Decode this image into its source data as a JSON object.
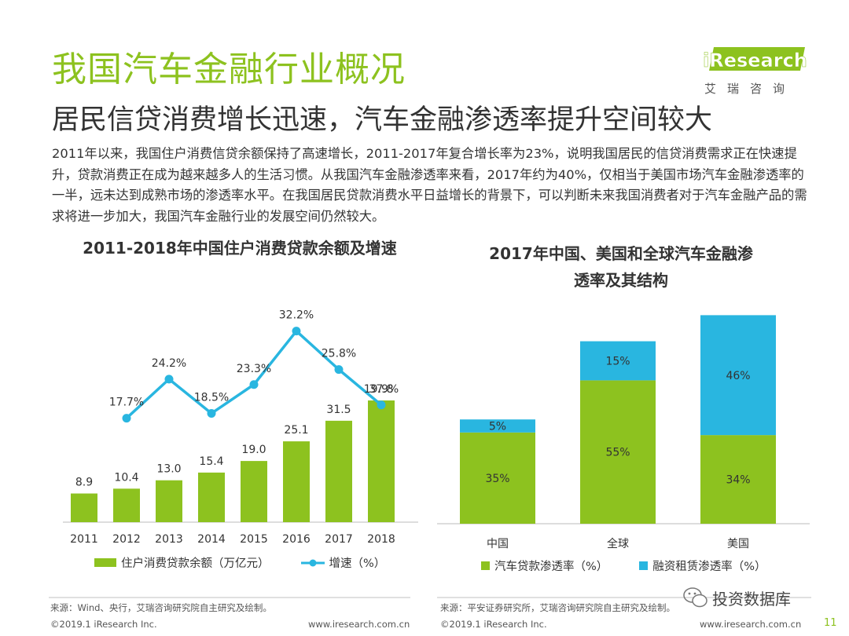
{
  "header": {
    "title": "我国汽车金融行业概况",
    "subtitle": "居民信贷消费增长迅速，汽车金融渗透率提升空间较大",
    "logo_text": "iResearch",
    "logo_cn": "艾瑞咨询",
    "brand_color": "#8dc21f"
  },
  "body": {
    "paragraph": "2011年以来，我国住户消费信贷余额保持了高速增长，2011-2017年复合增长率为23%，说明我国居民的信贷消费需求正在快速提升，贷款消费正在成为越来越多人的生活习惯。从我国汽车金融渗透率来看，2017年约为40%，仅相当于美国市场汽车金融渗透率的一半，远未达到成熟市场的渗透率水平。在我国居民贷款消费水平日益增长的背景下，可以判断未来我国消费者对于汽车金融产品的需求将进一步加大，我国汽车金融行业的发展空间仍然较大。"
  },
  "chart_data": [
    {
      "type": "bar",
      "title": "2011-2018年中国住户消费贷款余额及增速",
      "categories": [
        "2011",
        "2012",
        "2013",
        "2014",
        "2015",
        "2016",
        "2017",
        "2018"
      ],
      "series": [
        {
          "name": "住户消费贷款余额（万亿元）",
          "type": "bar",
          "color": "#8dc21f",
          "values": [
            8.9,
            10.4,
            13.0,
            15.4,
            19.0,
            25.1,
            31.5,
            37.8
          ],
          "labels": [
            "8.9",
            "10.4",
            "13.0",
            "15.4",
            "19.0",
            "25.1",
            "31.5",
            "37.8"
          ]
        },
        {
          "name": "增速（%）",
          "type": "line",
          "color": "#29b6e0",
          "values": [
            null,
            17.7,
            24.2,
            18.5,
            23.3,
            32.2,
            25.8,
            19.9
          ],
          "labels": [
            "",
            "17.7%",
            "24.2%",
            "18.5%",
            "23.3%",
            "32.2%",
            "25.8%",
            "19.9%"
          ]
        }
      ],
      "legend_position": "bottom",
      "grid": false
    },
    {
      "type": "bar",
      "stacked": true,
      "title_lines": [
        "2017年中国、美国和全球汽车金融渗",
        "透率及其结构"
      ],
      "categories": [
        "中国",
        "全球",
        "美国"
      ],
      "series": [
        {
          "name": "汽车贷款渗透率（%）",
          "color": "#8dc21f",
          "values": [
            35,
            55,
            34
          ],
          "labels": [
            "35%",
            "55%",
            "34%"
          ]
        },
        {
          "name": "融资租赁渗透率（%）",
          "color": "#29b6e0",
          "values": [
            5,
            15,
            46
          ],
          "labels": [
            "5%",
            "15%",
            "46%"
          ]
        }
      ],
      "legend_position": "bottom",
      "grid": false
    }
  ],
  "footer": {
    "source_left": "来源：Wind、央行，艾瑞咨询研究院自主研究及绘制。",
    "source_right": "来源：平安证券研究所，艾瑞咨询研究院自主研究及绘制。",
    "copyright_left": "©2019.1 iResearch Inc.",
    "url_left": "www.iresearch.com.cn",
    "copyright_right": "©2019.1 iResearch Inc.",
    "url_right": "www.iresearch.com.cn",
    "page_number": "11",
    "watermark": "投资数据库"
  }
}
